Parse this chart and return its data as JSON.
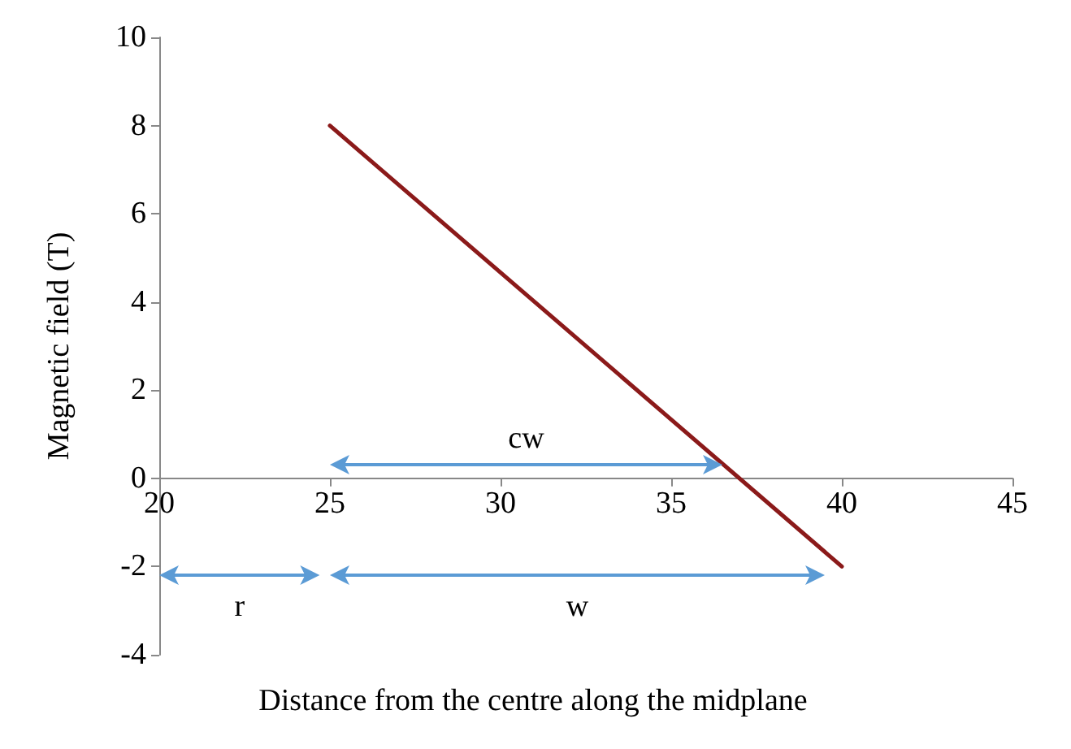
{
  "chart_data": {
    "type": "line",
    "xlabel": "Distance from the centre along the midplane",
    "ylabel": "Magnetic field (T)",
    "xlim": [
      20,
      45
    ],
    "xticks": [
      20,
      25,
      30,
      35,
      40,
      45
    ],
    "ylim": [
      -4,
      10
    ],
    "yticks": [
      -4,
      -2,
      0,
      2,
      4,
      6,
      8,
      10
    ],
    "series": [
      {
        "color": "#8b1a1a",
        "x": [
          25,
          40
        ],
        "values": [
          8,
          -2
        ]
      }
    ],
    "annotations": [
      "cw",
      "r",
      "w"
    ]
  }
}
